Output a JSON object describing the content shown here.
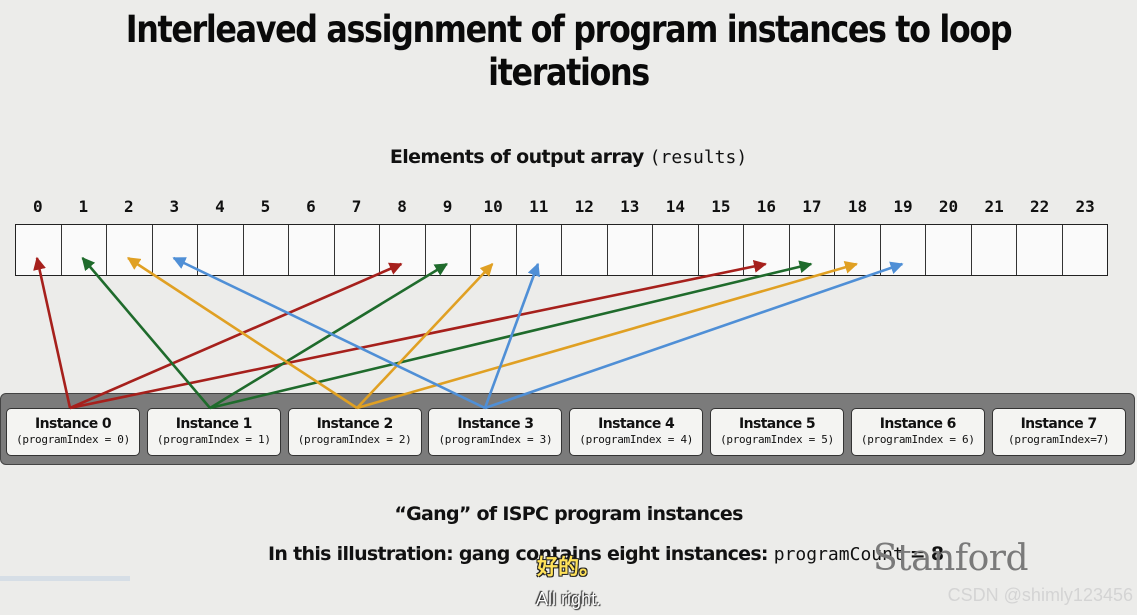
{
  "title": "Interleaved assignment of program instances to loop iterations",
  "array_heading": {
    "text": "Elements of output array ",
    "code": "(results)"
  },
  "array_indices": [
    "0",
    "1",
    "2",
    "3",
    "4",
    "5",
    "6",
    "7",
    "8",
    "9",
    "10",
    "11",
    "12",
    "13",
    "14",
    "15",
    "16",
    "17",
    "18",
    "19",
    "20",
    "21",
    "22",
    "23"
  ],
  "instances": [
    {
      "name": "Instance 0",
      "index": "(programIndex = 0)"
    },
    {
      "name": "Instance 1",
      "index": "(programIndex = 1)"
    },
    {
      "name": "Instance 2",
      "index": "(programIndex = 2)"
    },
    {
      "name": "Instance 3",
      "index": "(programIndex = 3)"
    },
    {
      "name": "Instance 4",
      "index": "(programIndex = 4)"
    },
    {
      "name": "Instance 5",
      "index": "(programIndex = 5)"
    },
    {
      "name": "Instance 6",
      "index": "(programIndex = 6)"
    },
    {
      "name": "Instance 7",
      "index": "(programIndex=7)"
    }
  ],
  "assignments": [
    {
      "instance": 0,
      "elements": [
        0,
        8,
        16
      ],
      "color": "#a6201c"
    },
    {
      "instance": 1,
      "elements": [
        1,
        9,
        17
      ],
      "color": "#1f6b2c"
    },
    {
      "instance": 2,
      "elements": [
        2,
        10,
        18
      ],
      "color": "#e0a023"
    },
    {
      "instance": 3,
      "elements": [
        3,
        11,
        19
      ],
      "color": "#4f8fd6"
    }
  ],
  "caption_gang": "“Gang” of ISPC program instances",
  "caption_count": {
    "text": "In this illustration: gang contains eight instances: ",
    "code": "programCount",
    "suffix": " = 8"
  },
  "logo": "Stanford",
  "subtitle_cn": "好的。",
  "subtitle_en": "All right.",
  "watermark": "CSDN @shimly123456"
}
